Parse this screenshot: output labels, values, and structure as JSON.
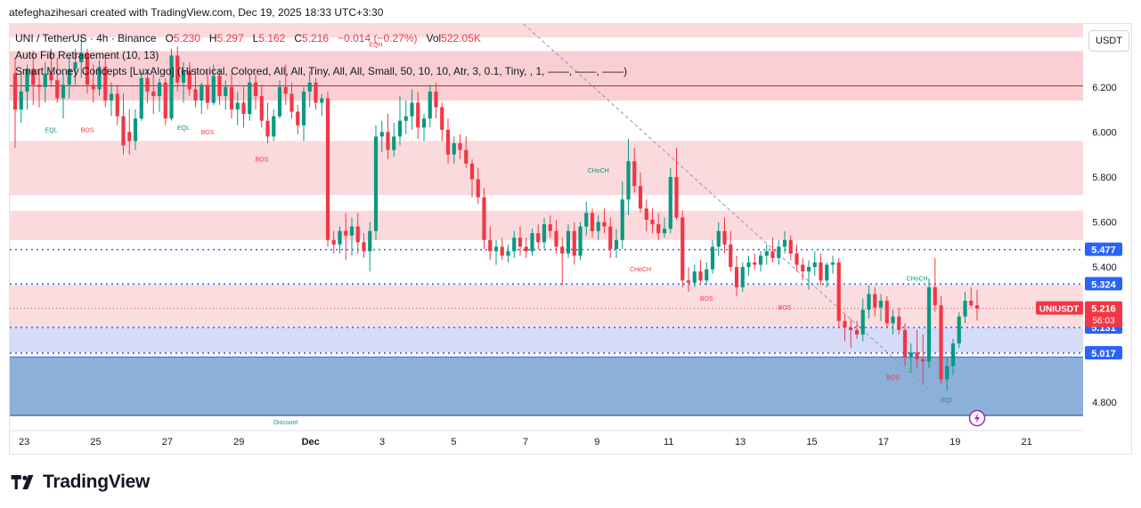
{
  "header": {
    "credit": "atefeghazihesari created with TradingView.com, Dec 19, 2025 18:33 UTC+3:30"
  },
  "legend": {
    "symbol": "UNI / TetherUS · 4h · Binance",
    "o_label": "O",
    "o_value": "5.230",
    "h_label": "H",
    "h_value": "5.297",
    "l_label": "L",
    "l_value": "5.162",
    "c_label": "C",
    "c_value": "5.216",
    "change": "−0.014 (−0.27%)",
    "vol_label": "Vol",
    "vol_value": "522.05K",
    "indicator1": "Auto Fib Retracement (10, 13)",
    "indicator2": "Smart Money Concepts [LuxAlgo] (Historical, Colored, All, All, Tiny, All, All, Small, 50, 10, 10, Atr, 3, 0.1, Tiny, , 1, ——, ——, ——)"
  },
  "currency_button": "USDT",
  "footer": {
    "brand": "TradingView"
  },
  "colors": {
    "up": "#089981",
    "down": "#f23645",
    "accent": "#2962ff",
    "zone_red": "#f8bbc2",
    "zone_blue": "#5b8fc9"
  },
  "chart_data": {
    "type": "candlestick",
    "title": "UNI / TetherUS · 4h · Binance",
    "ylim": [
      4.74,
      6.48
    ],
    "y_ticks": [
      4.8,
      5.4,
      5.6,
      5.8,
      6.0,
      6.2
    ],
    "x_ticks": [
      {
        "label": "23",
        "day": 23
      },
      {
        "label": "25",
        "day": 25
      },
      {
        "label": "27",
        "day": 27
      },
      {
        "label": "29",
        "day": 29
      },
      {
        "label": "Dec",
        "day": 31
      },
      {
        "label": "3",
        "day": 33
      },
      {
        "label": "5",
        "day": 35
      },
      {
        "label": "7",
        "day": 37
      },
      {
        "label": "9",
        "day": 39
      },
      {
        "label": "11",
        "day": 41
      },
      {
        "label": "13",
        "day": 43
      },
      {
        "label": "15",
        "day": 45
      },
      {
        "label": "17",
        "day": 47
      },
      {
        "label": "19",
        "day": 49
      },
      {
        "label": "21",
        "day": 51
      }
    ],
    "x_start_day": 22.6,
    "day_px": 40.2,
    "ohlc": [
      [
        6.26,
        6.33,
        5.93,
        6.1
      ],
      [
        6.1,
        6.27,
        6.04,
        6.18
      ],
      [
        6.18,
        6.3,
        6.1,
        6.28
      ],
      [
        6.28,
        6.36,
        6.12,
        6.21
      ],
      [
        6.21,
        6.28,
        6.11,
        6.2
      ],
      [
        6.2,
        6.31,
        6.13,
        6.26
      ],
      [
        6.26,
        6.37,
        6.2,
        6.23
      ],
      [
        6.23,
        6.33,
        6.13,
        6.15
      ],
      [
        6.15,
        6.26,
        6.06,
        6.21
      ],
      [
        6.21,
        6.34,
        6.15,
        6.28
      ],
      [
        6.28,
        6.37,
        6.21,
        6.31
      ],
      [
        6.31,
        6.43,
        6.24,
        6.35
      ],
      [
        6.35,
        6.37,
        6.17,
        6.21
      ],
      [
        6.21,
        6.3,
        6.13,
        6.19
      ],
      [
        6.19,
        6.32,
        6.16,
        6.29
      ],
      [
        6.29,
        6.33,
        6.11,
        6.14
      ],
      [
        6.14,
        6.22,
        6.07,
        6.17
      ],
      [
        6.17,
        6.21,
        6.03,
        6.07
      ],
      [
        6.07,
        6.17,
        5.9,
        5.94
      ],
      [
        6.0,
        6.1,
        5.9,
        5.96
      ],
      [
        5.96,
        6.1,
        5.92,
        6.06
      ],
      [
        6.06,
        6.27,
        6.05,
        6.24
      ],
      [
        6.24,
        6.28,
        6.13,
        6.18
      ],
      [
        6.18,
        6.26,
        6.08,
        6.16
      ],
      [
        6.16,
        6.24,
        6.09,
        6.22
      ],
      [
        6.22,
        6.24,
        6.03,
        6.06
      ],
      [
        6.06,
        6.37,
        6.05,
        6.34
      ],
      [
        6.34,
        6.38,
        6.18,
        6.22
      ],
      [
        6.22,
        6.31,
        6.13,
        6.27
      ],
      [
        6.27,
        6.31,
        6.16,
        6.19
      ],
      [
        6.19,
        6.28,
        6.11,
        6.14
      ],
      [
        6.14,
        6.22,
        6.08,
        6.21
      ],
      [
        6.21,
        6.27,
        6.1,
        6.13
      ],
      [
        6.13,
        6.3,
        6.12,
        6.25
      ],
      [
        6.25,
        6.28,
        6.12,
        6.16
      ],
      [
        6.16,
        6.23,
        6.1,
        6.2
      ],
      [
        6.2,
        6.26,
        6.06,
        6.1
      ],
      [
        6.1,
        6.18,
        6.03,
        6.13
      ],
      [
        6.13,
        6.2,
        6.02,
        6.08
      ],
      [
        6.08,
        6.26,
        6.05,
        6.22
      ],
      [
        6.22,
        6.26,
        6.1,
        6.16
      ],
      [
        6.16,
        6.21,
        6.02,
        6.05
      ],
      [
        6.05,
        6.13,
        5.95,
        5.98
      ],
      [
        5.98,
        6.1,
        5.96,
        6.07
      ],
      [
        6.07,
        6.23,
        6.06,
        6.2
      ],
      [
        6.2,
        6.3,
        6.12,
        6.17
      ],
      [
        6.17,
        6.22,
        6.06,
        6.09
      ],
      [
        6.09,
        6.12,
        5.99,
        6.03
      ],
      [
        6.03,
        6.2,
        5.96,
        6.18
      ],
      [
        6.18,
        6.27,
        6.11,
        6.22
      ],
      [
        6.22,
        6.24,
        6.1,
        6.13
      ],
      [
        6.13,
        6.17,
        6.07,
        6.15
      ],
      [
        6.15,
        6.18,
        5.49,
        5.52
      ],
      [
        5.52,
        5.56,
        5.46,
        5.5
      ],
      [
        5.5,
        5.58,
        5.46,
        5.56
      ],
      [
        5.56,
        5.64,
        5.43,
        5.54
      ],
      [
        5.54,
        5.62,
        5.45,
        5.58
      ],
      [
        5.58,
        5.64,
        5.46,
        5.51
      ],
      [
        5.51,
        5.55,
        5.44,
        5.47
      ],
      [
        5.47,
        5.6,
        5.38,
        5.56
      ],
      [
        5.56,
        6.03,
        5.52,
        5.98
      ],
      [
        5.98,
        6.05,
        5.91,
        6.0
      ],
      [
        6.0,
        6.08,
        5.88,
        5.92
      ],
      [
        5.92,
        6.04,
        5.89,
        5.98
      ],
      [
        5.98,
        6.16,
        5.94,
        6.05
      ],
      [
        6.05,
        6.14,
        5.99,
        6.07
      ],
      [
        6.07,
        6.19,
        6.01,
        6.13
      ],
      [
        6.13,
        6.18,
        5.97,
        6.02
      ],
      [
        6.02,
        6.08,
        5.96,
        6.06
      ],
      [
        6.06,
        6.21,
        6.02,
        6.18
      ],
      [
        6.18,
        6.22,
        6.06,
        6.11
      ],
      [
        6.11,
        6.13,
        5.96,
        6.01
      ],
      [
        6.01,
        6.06,
        5.86,
        5.9
      ],
      [
        5.9,
        5.98,
        5.86,
        5.95
      ],
      [
        5.95,
        5.99,
        5.88,
        5.92
      ],
      [
        5.92,
        5.98,
        5.84,
        5.86
      ],
      [
        5.86,
        5.88,
        5.71,
        5.79
      ],
      [
        5.79,
        5.84,
        5.68,
        5.71
      ],
      [
        5.71,
        5.75,
        5.48,
        5.52
      ],
      [
        5.52,
        5.58,
        5.43,
        5.47
      ],
      [
        5.47,
        5.52,
        5.41,
        5.49
      ],
      [
        5.49,
        5.53,
        5.43,
        5.45
      ],
      [
        5.45,
        5.5,
        5.42,
        5.47
      ],
      [
        5.47,
        5.56,
        5.44,
        5.53
      ],
      [
        5.53,
        5.58,
        5.45,
        5.49
      ],
      [
        5.49,
        5.53,
        5.44,
        5.47
      ],
      [
        5.47,
        5.57,
        5.45,
        5.55
      ],
      [
        5.55,
        5.59,
        5.48,
        5.51
      ],
      [
        5.51,
        5.62,
        5.48,
        5.59
      ],
      [
        5.59,
        5.63,
        5.53,
        5.56
      ],
      [
        5.56,
        5.61,
        5.46,
        5.49
      ],
      [
        5.49,
        5.53,
        5.32,
        5.46
      ],
      [
        5.46,
        5.59,
        5.44,
        5.56
      ],
      [
        5.56,
        5.6,
        5.41,
        5.45
      ],
      [
        5.45,
        5.6,
        5.43,
        5.58
      ],
      [
        5.58,
        5.69,
        5.54,
        5.64
      ],
      [
        5.64,
        5.66,
        5.53,
        5.56
      ],
      [
        5.56,
        5.63,
        5.52,
        5.6
      ],
      [
        5.6,
        5.66,
        5.55,
        5.58
      ],
      [
        5.58,
        5.62,
        5.44,
        5.48
      ],
      [
        5.48,
        5.57,
        5.44,
        5.52
      ],
      [
        5.52,
        5.78,
        5.48,
        5.7
      ],
      [
        5.7,
        5.97,
        5.63,
        5.87
      ],
      [
        5.87,
        5.93,
        5.73,
        5.76
      ],
      [
        5.76,
        5.82,
        5.64,
        5.66
      ],
      [
        5.66,
        5.7,
        5.56,
        5.61
      ],
      [
        5.61,
        5.66,
        5.55,
        5.59
      ],
      [
        5.59,
        5.64,
        5.52,
        5.55
      ],
      [
        5.55,
        5.62,
        5.53,
        5.57
      ],
      [
        5.57,
        5.84,
        5.55,
        5.8
      ],
      [
        5.8,
        5.93,
        5.61,
        5.62
      ],
      [
        5.62,
        5.65,
        5.31,
        5.34
      ],
      [
        5.34,
        5.4,
        5.29,
        5.33
      ],
      [
        5.33,
        5.41,
        5.31,
        5.38
      ],
      [
        5.38,
        5.43,
        5.33,
        5.34
      ],
      [
        5.34,
        5.42,
        5.32,
        5.39
      ],
      [
        5.39,
        5.52,
        5.37,
        5.49
      ],
      [
        5.49,
        5.6,
        5.45,
        5.56
      ],
      [
        5.56,
        5.62,
        5.46,
        5.5
      ],
      [
        5.5,
        5.56,
        5.38,
        5.4
      ],
      [
        5.4,
        5.45,
        5.27,
        5.31
      ],
      [
        5.31,
        5.42,
        5.29,
        5.4
      ],
      [
        5.4,
        5.45,
        5.36,
        5.42
      ],
      [
        5.42,
        5.46,
        5.39,
        5.41
      ],
      [
        5.41,
        5.47,
        5.38,
        5.45
      ],
      [
        5.45,
        5.5,
        5.41,
        5.47
      ],
      [
        5.47,
        5.53,
        5.42,
        5.44
      ],
      [
        5.44,
        5.52,
        5.41,
        5.49
      ],
      [
        5.49,
        5.56,
        5.46,
        5.52
      ],
      [
        5.52,
        5.54,
        5.43,
        5.46
      ],
      [
        5.46,
        5.5,
        5.38,
        5.41
      ],
      [
        5.41,
        5.44,
        5.34,
        5.38
      ],
      [
        5.38,
        5.43,
        5.3,
        5.4
      ],
      [
        5.4,
        5.47,
        5.36,
        5.42
      ],
      [
        5.42,
        5.46,
        5.32,
        5.34
      ],
      [
        5.34,
        5.42,
        5.31,
        5.41
      ],
      [
        5.41,
        5.45,
        5.37,
        5.42
      ],
      [
        5.42,
        5.44,
        5.13,
        5.16
      ],
      [
        5.16,
        5.19,
        5.07,
        5.13
      ],
      [
        5.13,
        5.17,
        5.04,
        5.12
      ],
      [
        5.12,
        5.16,
        5.08,
        5.1
      ],
      [
        5.1,
        5.26,
        5.07,
        5.21
      ],
      [
        5.21,
        5.32,
        5.17,
        5.28
      ],
      [
        5.28,
        5.31,
        5.18,
        5.22
      ],
      [
        5.22,
        5.28,
        5.16,
        5.25
      ],
      [
        5.25,
        5.27,
        5.13,
        5.15
      ],
      [
        5.15,
        5.21,
        5.1,
        5.18
      ],
      [
        5.18,
        5.22,
        5.1,
        5.12
      ],
      [
        5.12,
        5.15,
        4.96,
        5.0
      ],
      [
        5.0,
        5.06,
        4.93,
        5.02
      ],
      [
        5.02,
        5.12,
        4.95,
        4.99
      ],
      [
        4.99,
        5.1,
        4.88,
        4.98
      ],
      [
        4.98,
        5.35,
        4.95,
        5.31
      ],
      [
        5.31,
        5.44,
        5.2,
        5.23
      ],
      [
        5.23,
        5.27,
        4.88,
        4.9
      ],
      [
        4.9,
        5.0,
        4.85,
        4.96
      ],
      [
        4.96,
        5.08,
        4.92,
        5.06
      ],
      [
        5.06,
        5.2,
        5.04,
        5.18
      ],
      [
        5.18,
        5.29,
        5.15,
        5.25
      ],
      [
        5.25,
        5.31,
        5.22,
        5.23
      ],
      [
        5.23,
        5.297,
        5.162,
        5.216
      ]
    ],
    "price_labels": [
      {
        "label": "5.477",
        "price": 5.477,
        "kind": "blue"
      },
      {
        "label": "5.324",
        "price": 5.324,
        "kind": "blue"
      },
      {
        "label": "5.131",
        "price": 5.131,
        "kind": "blue"
      },
      {
        "label": "5.017",
        "price": 5.017,
        "kind": "blue"
      }
    ],
    "current": {
      "ticker": "UNIUSDT",
      "price_label": "5.216",
      "price": 5.216,
      "countdown": "56:03"
    },
    "annotations": [
      {
        "text": "EQL",
        "kind": "up",
        "candle": 6,
        "price": 6.0
      },
      {
        "text": "BOS",
        "kind": "down",
        "candle": 12,
        "price": 6.0
      },
      {
        "text": "EQL",
        "kind": "up",
        "candle": 28,
        "price": 6.01
      },
      {
        "text": "BOS",
        "kind": "down",
        "candle": 32,
        "price": 5.99
      },
      {
        "text": "BOS",
        "kind": "down",
        "candle": 41,
        "price": 5.87
      },
      {
        "text": "EQH",
        "kind": "down",
        "candle": 60,
        "price": 6.38
      },
      {
        "text": "CHoCH",
        "kind": "up",
        "candle": 97,
        "price": 5.82
      },
      {
        "text": "CHoCH",
        "kind": "down",
        "candle": 104,
        "price": 5.38
      },
      {
        "text": "BOS",
        "kind": "down",
        "candle": 115,
        "price": 5.25
      },
      {
        "text": "BOS",
        "kind": "down",
        "candle": 128,
        "price": 5.21
      },
      {
        "text": "CHoCH",
        "kind": "up",
        "candle": 150,
        "price": 5.34
      },
      {
        "text": "BOS",
        "kind": "down",
        "candle": 146,
        "price": 4.9
      },
      {
        "text": "EQL",
        "kind": "up",
        "candle": 155,
        "price": 4.8
      },
      {
        "text": "Discount",
        "kind": "up",
        "candle": 45,
        "price": 4.7
      }
    ],
    "zones": [
      {
        "name": "premium",
        "p1": 6.48,
        "p2": 6.42,
        "color": "#f8bbc2",
        "alpha": 0.55
      },
      {
        "name": "supply-top",
        "p1": 6.36,
        "p2": 6.14,
        "color": "#f8bbc2",
        "alpha": 0.7
      },
      {
        "name": "supply-mid",
        "p1": 5.96,
        "p2": 5.72,
        "color": "#f8bbc2",
        "alpha": 0.55
      },
      {
        "name": "supply-low",
        "p1": 5.65,
        "p2": 5.52,
        "color": "#f8bbc2",
        "alpha": 0.55
      },
      {
        "name": "supply-current",
        "p1": 5.32,
        "p2": 5.13,
        "color": "#f8bbc2",
        "alpha": 0.5
      },
      {
        "name": "fib-band",
        "p1": 5.13,
        "p2": 5.02,
        "color": "#b7c4f2",
        "alpha": 0.6
      },
      {
        "name": "discount",
        "p1": 5.0,
        "p2": 4.74,
        "color": "#5b8fc9",
        "alpha": 0.7
      }
    ]
  }
}
